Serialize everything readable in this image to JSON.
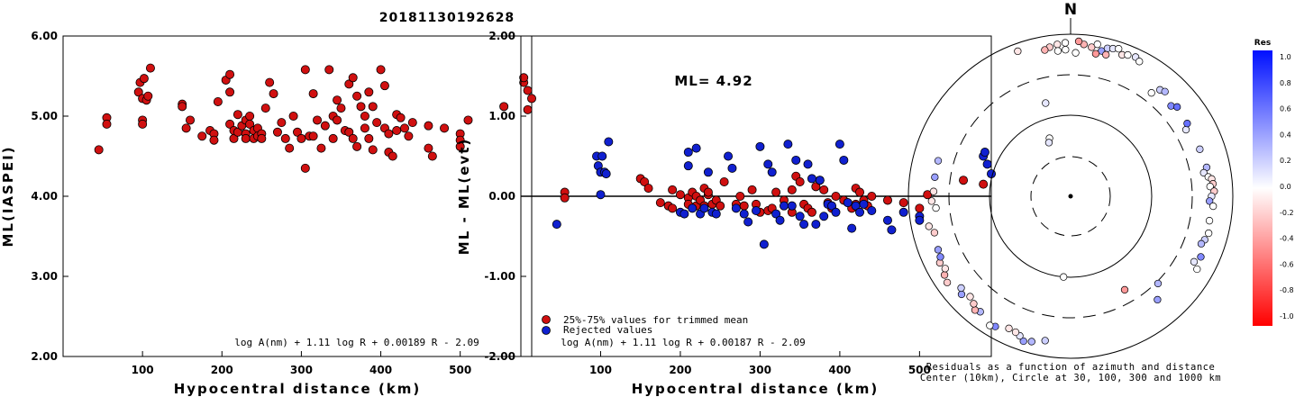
{
  "event_id": "20181130192628",
  "chart_data": [
    {
      "type": "scatter",
      "name": "ml-vs-distance",
      "xlabel": "Hypocentral distance (km)",
      "ylabel": "ML(IASPEI)",
      "xlim": [
        0,
        590
      ],
      "ylim": [
        2.0,
        6.0
      ],
      "xticks": [
        100,
        200,
        300,
        400,
        500
      ],
      "yticks": [
        "2.00",
        "3.00",
        "4.00",
        "5.00",
        "6.00"
      ],
      "annotation": "log A(nm) + 1.11 log R + 0.00189 R - 2.09",
      "point_color": "#d01010",
      "points": [
        [
          45,
          4.58
        ],
        [
          55,
          4.98
        ],
        [
          55,
          4.9
        ],
        [
          95,
          5.3
        ],
        [
          97,
          5.42
        ],
        [
          100,
          5.22
        ],
        [
          100,
          4.95
        ],
        [
          100,
          4.9
        ],
        [
          102,
          5.47
        ],
        [
          105,
          5.2
        ],
        [
          107,
          5.25
        ],
        [
          110,
          5.6
        ],
        [
          150,
          5.15
        ],
        [
          150,
          5.12
        ],
        [
          155,
          4.85
        ],
        [
          160,
          4.95
        ],
        [
          175,
          4.75
        ],
        [
          185,
          4.82
        ],
        [
          190,
          4.78
        ],
        [
          190,
          4.7
        ],
        [
          195,
          5.18
        ],
        [
          205,
          5.45
        ],
        [
          210,
          5.3
        ],
        [
          210,
          5.52
        ],
        [
          210,
          4.9
        ],
        [
          215,
          4.82
        ],
        [
          215,
          4.72
        ],
        [
          220,
          5.02
        ],
        [
          220,
          4.8
        ],
        [
          225,
          4.88
        ],
        [
          230,
          4.95
        ],
        [
          230,
          4.78
        ],
        [
          230,
          4.72
        ],
        [
          235,
          5.0
        ],
        [
          235,
          4.9
        ],
        [
          240,
          4.82
        ],
        [
          240,
          4.72
        ],
        [
          245,
          4.85
        ],
        [
          245,
          4.75
        ],
        [
          250,
          4.78
        ],
        [
          250,
          4.72
        ],
        [
          255,
          5.1
        ],
        [
          260,
          5.42
        ],
        [
          265,
          5.28
        ],
        [
          270,
          4.8
        ],
        [
          275,
          4.92
        ],
        [
          280,
          4.72
        ],
        [
          285,
          4.6
        ],
        [
          290,
          5.0
        ],
        [
          295,
          4.8
        ],
        [
          300,
          4.72
        ],
        [
          305,
          5.58
        ],
        [
          305,
          4.35
        ],
        [
          310,
          4.75
        ],
        [
          315,
          5.28
        ],
        [
          315,
          4.75
        ],
        [
          320,
          4.95
        ],
        [
          325,
          4.6
        ],
        [
          330,
          4.88
        ],
        [
          335,
          5.58
        ],
        [
          340,
          5.0
        ],
        [
          340,
          4.72
        ],
        [
          345,
          5.2
        ],
        [
          345,
          4.95
        ],
        [
          350,
          5.1
        ],
        [
          355,
          4.82
        ],
        [
          360,
          5.4
        ],
        [
          360,
          4.8
        ],
        [
          365,
          5.48
        ],
        [
          365,
          4.72
        ],
        [
          370,
          5.25
        ],
        [
          370,
          4.62
        ],
        [
          375,
          5.12
        ],
        [
          380,
          5.0
        ],
        [
          380,
          4.85
        ],
        [
          385,
          5.3
        ],
        [
          385,
          4.72
        ],
        [
          390,
          5.12
        ],
        [
          390,
          4.58
        ],
        [
          395,
          4.92
        ],
        [
          400,
          5.58
        ],
        [
          405,
          5.38
        ],
        [
          405,
          4.85
        ],
        [
          410,
          4.78
        ],
        [
          410,
          4.55
        ],
        [
          415,
          4.5
        ],
        [
          420,
          5.02
        ],
        [
          420,
          4.82
        ],
        [
          425,
          4.98
        ],
        [
          430,
          4.85
        ],
        [
          435,
          4.75
        ],
        [
          440,
          4.92
        ],
        [
          460,
          4.88
        ],
        [
          460,
          4.6
        ],
        [
          465,
          4.5
        ],
        [
          480,
          4.85
        ],
        [
          500,
          4.78
        ],
        [
          500,
          4.7
        ],
        [
          500,
          4.62
        ],
        [
          510,
          4.95
        ],
        [
          555,
          5.12
        ],
        [
          580,
          5.42
        ],
        [
          580,
          5.48
        ],
        [
          585,
          5.32
        ],
        [
          585,
          5.08
        ],
        [
          590,
          5.22
        ]
      ]
    },
    {
      "type": "scatter",
      "name": "residual-vs-distance",
      "xlabel": "Hypocentral distance (km)",
      "ylabel": "ML - ML(evt)",
      "xlim": [
        0,
        590
      ],
      "ylim": [
        -2.0,
        2.0
      ],
      "xticks": [
        100,
        200,
        300,
        400,
        500
      ],
      "yticks": [
        "-2.00",
        "-1.00",
        "0.00",
        "1.00",
        "2.00"
      ],
      "ml_label": "ML= 4.92",
      "annotation": "log A(nm) + 1.11 log R + 0.00187 R - 2.09",
      "legend": [
        {
          "label": "25%-75% values for trimmed mean",
          "color": "#d01010"
        },
        {
          "label": "Rejected values",
          "color": "#1020d0"
        }
      ],
      "trimmed": [
        [
          55,
          0.05
        ],
        [
          55,
          -0.02
        ],
        [
          150,
          0.22
        ],
        [
          155,
          0.18
        ],
        [
          160,
          0.1
        ],
        [
          175,
          -0.08
        ],
        [
          185,
          -0.12
        ],
        [
          190,
          -0.15
        ],
        [
          190,
          0.08
        ],
        [
          200,
          0.02
        ],
        [
          210,
          -0.02
        ],
        [
          210,
          -0.1
        ],
        [
          215,
          0.05
        ],
        [
          220,
          0.0
        ],
        [
          220,
          -0.12
        ],
        [
          225,
          -0.05
        ],
        [
          230,
          0.1
        ],
        [
          230,
          -0.12
        ],
        [
          235,
          0.02
        ],
        [
          235,
          0.05
        ],
        [
          240,
          -0.1
        ],
        [
          245,
          -0.05
        ],
        [
          250,
          -0.12
        ],
        [
          255,
          0.18
        ],
        [
          270,
          -0.1
        ],
        [
          275,
          0.0
        ],
        [
          280,
          -0.12
        ],
        [
          290,
          0.08
        ],
        [
          295,
          -0.1
        ],
        [
          300,
          -0.2
        ],
        [
          310,
          -0.18
        ],
        [
          315,
          -0.15
        ],
        [
          320,
          0.05
        ],
        [
          330,
          -0.05
        ],
        [
          340,
          0.08
        ],
        [
          340,
          -0.2
        ],
        [
          345,
          0.25
        ],
        [
          350,
          0.18
        ],
        [
          355,
          -0.1
        ],
        [
          360,
          -0.15
        ],
        [
          365,
          -0.2
        ],
        [
          370,
          0.12
        ],
        [
          375,
          0.2
        ],
        [
          380,
          0.08
        ],
        [
          385,
          -0.08
        ],
        [
          390,
          -0.15
        ],
        [
          395,
          0.0
        ],
        [
          405,
          -0.05
        ],
        [
          410,
          -0.08
        ],
        [
          415,
          -0.15
        ],
        [
          420,
          0.1
        ],
        [
          420,
          -0.1
        ],
        [
          425,
          0.05
        ],
        [
          430,
          -0.05
        ],
        [
          435,
          -0.12
        ],
        [
          440,
          0.0
        ],
        [
          460,
          -0.05
        ],
        [
          480,
          -0.08
        ],
        [
          500,
          -0.15
        ],
        [
          510,
          0.02
        ],
        [
          555,
          0.2
        ],
        [
          580,
          0.15
        ]
      ],
      "rejected": [
        [
          45,
          -0.35
        ],
        [
          95,
          0.5
        ],
        [
          97,
          0.38
        ],
        [
          100,
          0.3
        ],
        [
          100,
          0.02
        ],
        [
          102,
          0.5
        ],
        [
          105,
          0.3
        ],
        [
          107,
          0.28
        ],
        [
          110,
          0.68
        ],
        [
          200,
          -0.2
        ],
        [
          205,
          -0.22
        ],
        [
          210,
          0.55
        ],
        [
          210,
          0.38
        ],
        [
          215,
          -0.15
        ],
        [
          220,
          0.6
        ],
        [
          225,
          -0.22
        ],
        [
          230,
          -0.15
        ],
        [
          235,
          0.3
        ],
        [
          240,
          -0.2
        ],
        [
          245,
          -0.22
        ],
        [
          260,
          0.5
        ],
        [
          265,
          0.35
        ],
        [
          270,
          -0.15
        ],
        [
          280,
          -0.22
        ],
        [
          285,
          -0.32
        ],
        [
          295,
          -0.18
        ],
        [
          300,
          0.62
        ],
        [
          305,
          -0.6
        ],
        [
          310,
          0.4
        ],
        [
          315,
          0.3
        ],
        [
          320,
          -0.22
        ],
        [
          325,
          -0.3
        ],
        [
          330,
          -0.12
        ],
        [
          335,
          0.65
        ],
        [
          340,
          -0.12
        ],
        [
          345,
          0.45
        ],
        [
          350,
          -0.25
        ],
        [
          355,
          -0.35
        ],
        [
          360,
          0.4
        ],
        [
          365,
          0.22
        ],
        [
          370,
          -0.35
        ],
        [
          375,
          0.2
        ],
        [
          380,
          -0.25
        ],
        [
          385,
          -0.1
        ],
        [
          390,
          -0.12
        ],
        [
          395,
          -0.2
        ],
        [
          400,
          0.65
        ],
        [
          405,
          0.45
        ],
        [
          410,
          -0.08
        ],
        [
          415,
          -0.4
        ],
        [
          420,
          -0.12
        ],
        [
          425,
          -0.2
        ],
        [
          430,
          -0.1
        ],
        [
          440,
          -0.18
        ],
        [
          460,
          -0.3
        ],
        [
          465,
          -0.42
        ],
        [
          480,
          -0.2
        ],
        [
          500,
          -0.25
        ],
        [
          500,
          -0.3
        ],
        [
          580,
          0.5
        ],
        [
          585,
          0.4
        ],
        [
          590,
          0.28
        ],
        [
          582,
          0.55
        ]
      ]
    },
    {
      "type": "polar-scatter",
      "name": "azimuth-residual-plot",
      "north_label": "N",
      "caption_line1": "Residuals as a function of azimuth and distance",
      "caption_line2": "Center (10km), Circle at 30, 100, 300 and 1000 km",
      "rings_km": [
        30,
        100,
        300,
        1000
      ],
      "colorbar_title": "Res",
      "colorbar_ticks": [
        "1.0",
        "0.8",
        "0.6",
        "0.4",
        "0.2",
        "0.0",
        "-0.2",
        "-0.4",
        "-0.6",
        "-0.8",
        "-1.0"
      ],
      "stations": [
        [
          352,
          390,
          -0.2
        ],
        [
          355,
          395,
          -0.1
        ],
        [
          350,
          385,
          -0.3
        ],
        [
          358,
          398,
          0.0
        ],
        [
          5,
          395,
          -0.3
        ],
        [
          8,
          390,
          -0.2
        ],
        [
          3,
          402,
          -0.4
        ],
        [
          10,
          400,
          0.0
        ],
        [
          12,
          385,
          0.4
        ],
        [
          14,
          395,
          0.2
        ],
        [
          16,
          398,
          0.1
        ],
        [
          18,
          402,
          0.0
        ],
        [
          20,
          390,
          -0.1
        ],
        [
          22,
          395,
          0.0
        ],
        [
          25,
          398,
          0.1
        ],
        [
          27,
          392,
          0.0
        ],
        [
          14,
          378,
          -0.3
        ],
        [
          10,
          375,
          -0.4
        ],
        [
          2,
          372,
          0.0
        ],
        [
          355,
          378,
          0.0
        ],
        [
          358,
          380,
          0.0
        ],
        [
          38,
          340,
          0.0
        ],
        [
          40,
          360,
          0.2
        ],
        [
          42,
          365,
          0.3
        ],
        [
          48,
          350,
          0.5
        ],
        [
          50,
          360,
          0.6
        ],
        [
          60,
          345,
          0.1
        ],
        [
          58,
          356,
          0.6
        ],
        [
          70,
          356,
          0.2
        ],
        [
          78,
          360,
          0.3
        ],
        [
          80,
          350,
          0.1
        ],
        [
          82,
          360,
          0.0
        ],
        [
          83,
          368,
          -0.1
        ],
        [
          85,
          370,
          -0.2
        ],
        [
          86,
          362,
          0.0
        ],
        [
          88,
          372,
          -0.2
        ],
        [
          90,
          365,
          0.1
        ],
        [
          92,
          360,
          0.4
        ],
        [
          94,
          370,
          0.0
        ],
        [
          100,
          365,
          0.0
        ],
        [
          105,
          370,
          0.0
        ],
        [
          108,
          365,
          0.2
        ],
        [
          110,
          360,
          0.3
        ],
        [
          115,
          372,
          0.5
        ],
        [
          118,
          362,
          0.1
        ],
        [
          120,
          378,
          0.0
        ],
        [
          135,
          320,
          0.3
        ],
        [
          140,
          350,
          0.4
        ],
        [
          150,
          280,
          -0.4
        ],
        [
          185,
          210,
          0.0
        ],
        [
          190,
          380,
          0.2
        ],
        [
          195,
          390,
          0.3
        ],
        [
          198,
          395,
          0.4
        ],
        [
          200,
          385,
          0.1
        ],
        [
          202,
          380,
          -0.1
        ],
        [
          205,
          378,
          -0.1
        ],
        [
          210,
          390,
          0.5
        ],
        [
          212,
          395,
          0.0
        ],
        [
          218,
          380,
          0.3
        ],
        [
          220,
          385,
          -0.3
        ],
        [
          222,
          375,
          -0.2
        ],
        [
          225,
          368,
          -0.1
        ],
        [
          228,
          380,
          0.4
        ],
        [
          230,
          370,
          0.2
        ],
        [
          235,
          390,
          -0.2
        ],
        [
          238,
          385,
          -0.3
        ],
        [
          240,
          375,
          -0.1
        ],
        [
          243,
          380,
          -0.2
        ],
        [
          245,
          372,
          0.5
        ],
        [
          248,
          370,
          0.4
        ],
        [
          255,
          365,
          -0.2
        ],
        [
          258,
          375,
          -0.1
        ],
        [
          265,
          350,
          0.0
        ],
        [
          268,
          360,
          -0.1
        ],
        [
          272,
          355,
          -0.1
        ],
        [
          278,
          355,
          0.4
        ],
        [
          285,
          355,
          0.3
        ],
        [
          345,
          250,
          0.1
        ],
        [
          340,
          160,
          0.0
        ],
        [
          338,
          150,
          0.1
        ],
        [
          340,
          400,
          -0.1
        ]
      ]
    }
  ]
}
